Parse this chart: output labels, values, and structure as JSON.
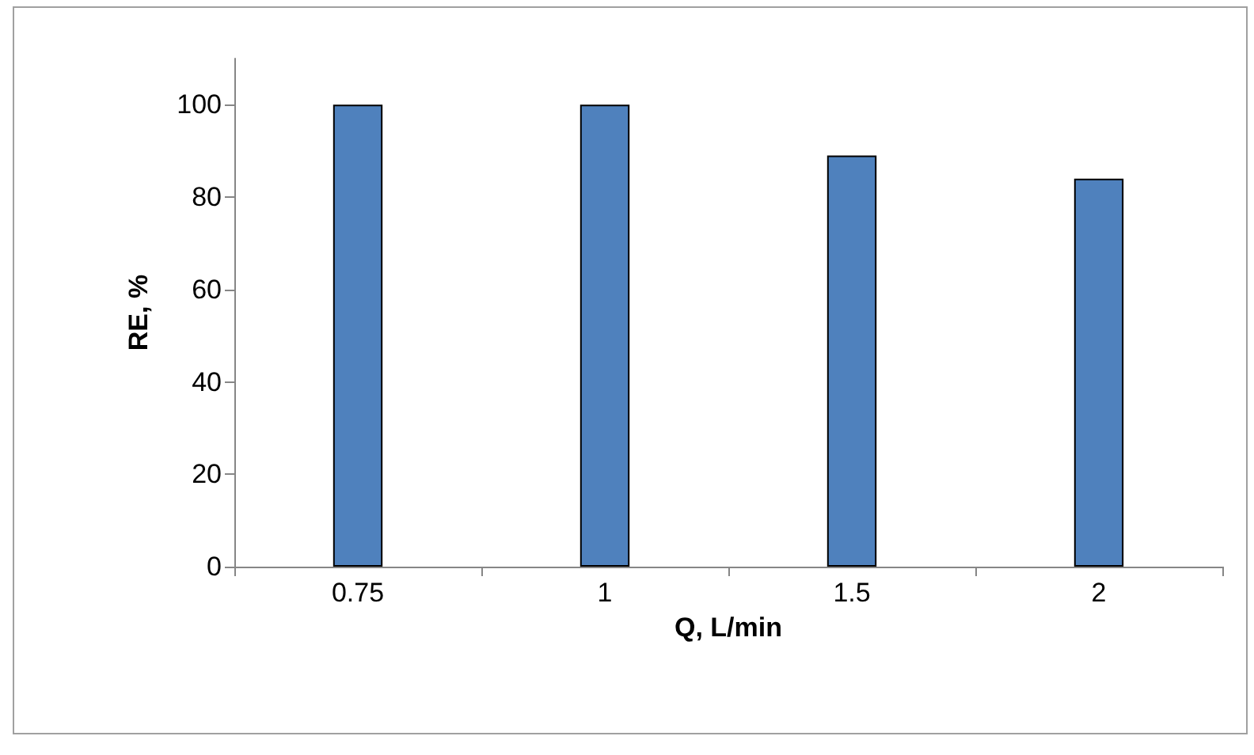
{
  "chart_data": {
    "type": "bar",
    "xlabel": "Q, L/min",
    "ylabel": "RE, %",
    "categories": [
      "0.75",
      "1",
      "1.5",
      "2"
    ],
    "values": [
      100,
      100,
      89,
      84
    ],
    "color": "#4f81bd",
    "ylim": [
      0,
      110
    ],
    "yticks": [
      0,
      20,
      40,
      60,
      80,
      100
    ],
    "grid": false
  }
}
